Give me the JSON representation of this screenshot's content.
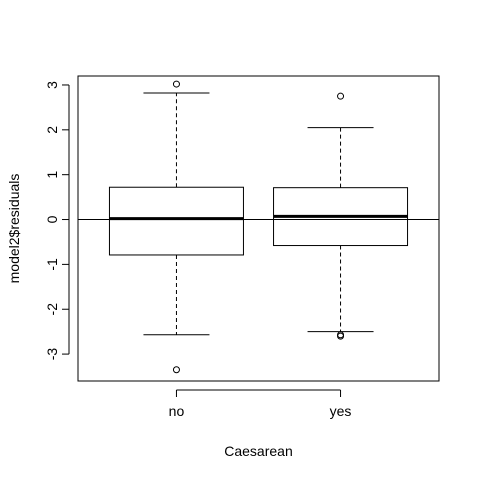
{
  "chart_data": {
    "type": "boxplot",
    "xlabel": "Caesarean",
    "ylabel": "model2$residuals",
    "categories": [
      "no",
      "yes"
    ],
    "ylim": [
      -3.6,
      3.2
    ],
    "yticks": [
      -3,
      -2,
      -1,
      0,
      1,
      2,
      3
    ],
    "hline": 0,
    "boxes": [
      {
        "label": "no",
        "lower_whisker": -2.57,
        "q1": -0.79,
        "median": 0.02,
        "q3": 0.72,
        "upper_whisker": 2.82,
        "outliers": [
          3.02,
          -3.35
        ]
      },
      {
        "label": "yes",
        "lower_whisker": -2.5,
        "q1": -0.58,
        "median": 0.07,
        "q3": 0.71,
        "upper_whisker": 2.05,
        "outliers": [
          2.75,
          -2.57,
          -2.6
        ]
      }
    ]
  }
}
